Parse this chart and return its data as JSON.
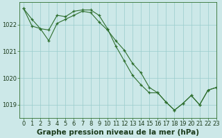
{
  "background_color": "#cce8e8",
  "grid_color": "#99cccc",
  "line_color": "#2d6e2d",
  "marker_color": "#2d6e2d",
  "title": "Graphe pression niveau de la mer (hPa)",
  "xlim": [
    -0.5,
    23
  ],
  "ylim": [
    1018.5,
    1022.85
  ],
  "yticks": [
    1019,
    1020,
    1021,
    1022
  ],
  "xticks": [
    0,
    1,
    2,
    3,
    4,
    5,
    6,
    7,
    8,
    9,
    10,
    11,
    12,
    13,
    14,
    15,
    16,
    17,
    18,
    19,
    20,
    21,
    22,
    23
  ],
  "series1_x": [
    0,
    1,
    2,
    3,
    4,
    5,
    6,
    7,
    8,
    9,
    10,
    11,
    12,
    13,
    14,
    15,
    16,
    17,
    18,
    19,
    20,
    21,
    22,
    23
  ],
  "series1_y": [
    1022.6,
    1022.2,
    1021.85,
    1021.4,
    1022.05,
    1022.2,
    1022.35,
    1022.5,
    1022.45,
    1022.1,
    1021.8,
    1021.4,
    1021.05,
    1020.55,
    1020.2,
    1019.65,
    1019.45,
    1019.1,
    1018.8,
    1019.05,
    1019.35,
    1019.0,
    1019.55,
    1019.65
  ],
  "series2_x": [
    0,
    1,
    2,
    3,
    4,
    5,
    6,
    7,
    8,
    9,
    10,
    11,
    12,
    13,
    14,
    15,
    16,
    17,
    18,
    19,
    20,
    21,
    22,
    23
  ],
  "series2_y": [
    1022.6,
    1021.95,
    1021.85,
    1021.8,
    1022.35,
    1022.3,
    1022.5,
    1022.55,
    1022.55,
    1022.35,
    1021.85,
    1021.2,
    1020.65,
    1020.1,
    1019.75,
    1019.45,
    1019.45,
    1019.1,
    1018.8,
    1019.05,
    1019.35,
    1019.0,
    1019.55,
    1019.65
  ],
  "title_fontsize": 7.5,
  "tick_fontsize": 6
}
